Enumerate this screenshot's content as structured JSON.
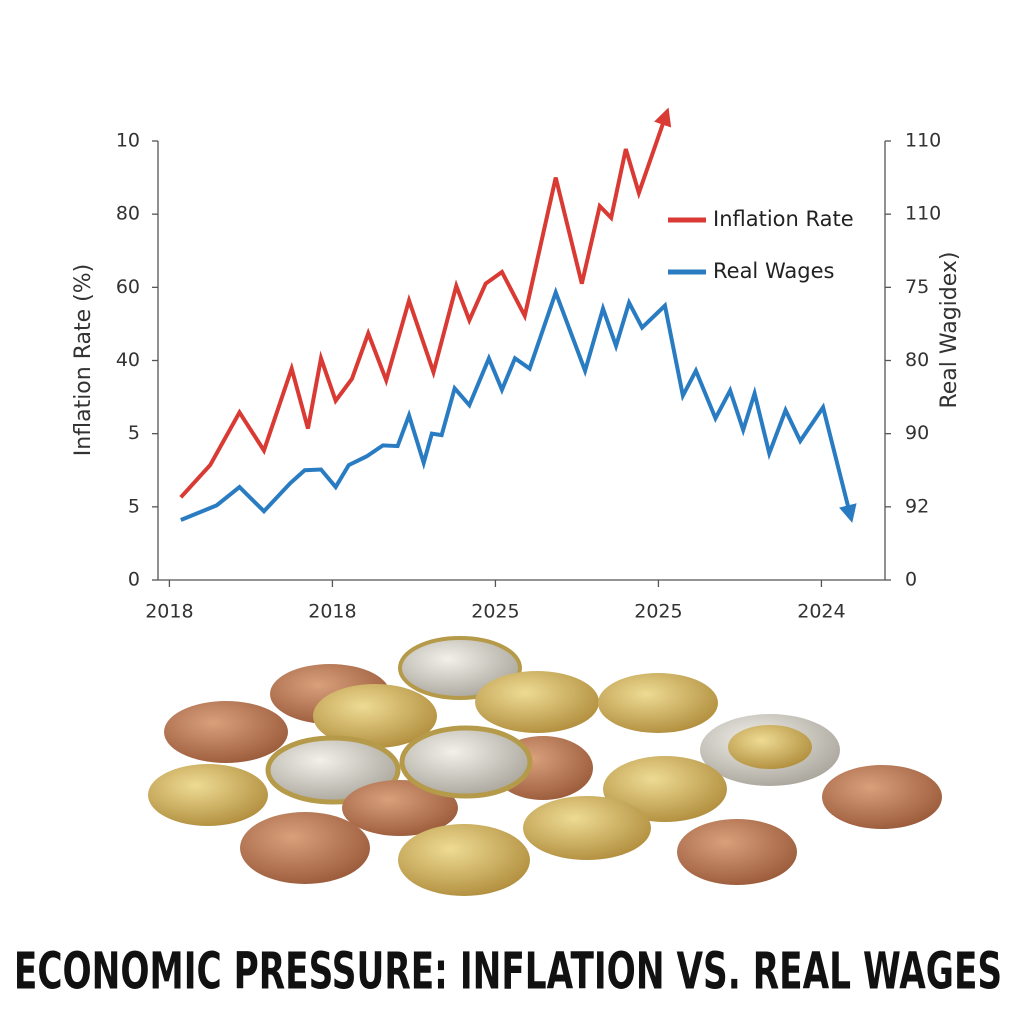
{
  "chart_data": {
    "type": "line",
    "title": "ECONOMIC PRESSURE: INFLATION VS. REAL WAGES",
    "ylabel": "Inflation Rate (%)",
    "y2label": "Real Wagidex)",
    "xlim": [
      -0.07,
      4.39
    ],
    "xticks": [
      {
        "value": 0,
        "label": "2018"
      },
      {
        "value": 1,
        "label": "2018"
      },
      {
        "value": 2,
        "label": "2025"
      },
      {
        "value": 3,
        "label": "2025"
      },
      {
        "value": 4,
        "label": "2024"
      }
    ],
    "ylim": [
      0,
      60
    ],
    "yticks": [
      0,
      {
        "value": 10,
        "label": "5"
      },
      {
        "value": 20,
        "label": "5"
      },
      {
        "value": 30,
        "label": "40"
      },
      {
        "value": 40,
        "label": "60"
      },
      {
        "value": 50,
        "label": "80"
      },
      {
        "value": 60,
        "label": "10"
      }
    ],
    "y2lim": [
      0,
      60
    ],
    "y2ticks": [
      0,
      {
        "value": 10,
        "label": "92"
      },
      {
        "value": 20,
        "label": "90"
      },
      {
        "value": 30,
        "label": "80"
      },
      {
        "value": 40,
        "label": "75"
      },
      {
        "value": 50,
        "label": "110"
      },
      {
        "value": 60,
        "label": "110"
      }
    ],
    "grid": false,
    "legend": "upper right",
    "series": [
      {
        "name": "Inflation Rate",
        "color": "#d93a34",
        "x": [
          0.07,
          0.25,
          0.43,
          0.58,
          0.75,
          0.85,
          0.93,
          1.02,
          1.12,
          1.22,
          1.33,
          1.47,
          1.62,
          1.76,
          1.84,
          1.94,
          2.04,
          2.18,
          2.37,
          2.53,
          2.64,
          2.71,
          2.8,
          2.88,
          3.05
        ],
        "values": [
          11.3,
          15.7,
          22.9,
          17.7,
          28.9,
          20.7,
          30.3,
          24.5,
          27.5,
          33.7,
          27.3,
          38.2,
          28.4,
          40.2,
          35.5,
          40.5,
          42.1,
          36.1,
          55.0,
          40.5,
          51.1,
          49.5,
          58.9,
          52.9,
          63.8
        ]
      },
      {
        "name": "Real Wages",
        "color": "#2a7cc2",
        "axis": "y2",
        "x": [
          0.07,
          0.29,
          0.43,
          0.58,
          0.74,
          0.83,
          0.93,
          1.02,
          1.1,
          1.21,
          1.31,
          1.4,
          1.47,
          1.56,
          1.61,
          1.67,
          1.75,
          1.84,
          1.96,
          2.04,
          2.12,
          2.21,
          2.37,
          2.55,
          2.66,
          2.74,
          2.82,
          2.9,
          3.04,
          3.15,
          3.23,
          3.35,
          3.44,
          3.52,
          3.59,
          3.68,
          3.78,
          3.87,
          4.01,
          4.18
        ],
        "values": [
          8.2,
          10.2,
          12.7,
          9.4,
          13.2,
          15.0,
          15.1,
          12.7,
          15.7,
          16.9,
          18.4,
          18.3,
          22.5,
          16.0,
          20.0,
          19.8,
          26.2,
          23.9,
          30.3,
          26.0,
          30.3,
          28.9,
          39.3,
          28.6,
          37.1,
          32.0,
          37.9,
          34.5,
          37.5,
          25.2,
          28.6,
          22.1,
          25.9,
          20.5,
          25.5,
          17.3,
          23.2,
          19.0,
          23.6,
          8.6
        ]
      }
    ]
  }
}
